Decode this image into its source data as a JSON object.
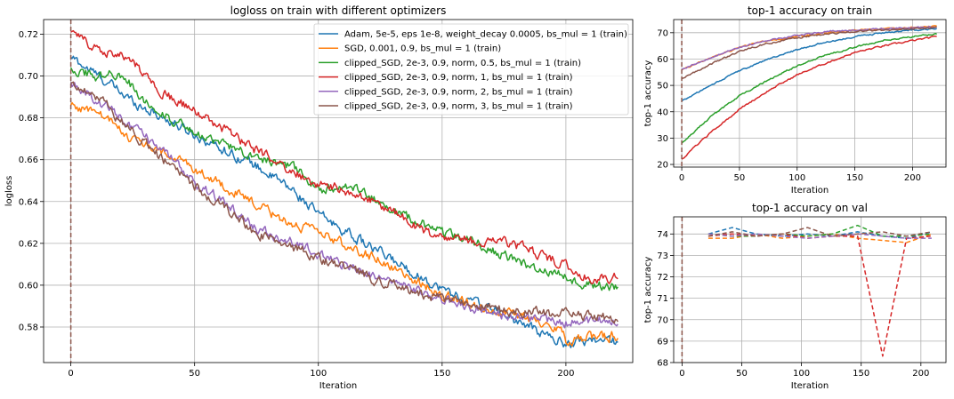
{
  "colors": {
    "adam": "#1f77b4",
    "sgd": "#ff7f0e",
    "clip05": "#2ca02c",
    "clip1": "#d62728",
    "clip2": "#9467bd",
    "clip3": "#8c564b",
    "grid": "#b0b0b0",
    "vline": "#8c564b"
  },
  "chart_data": [
    {
      "id": "loss",
      "type": "line",
      "title": "logloss on train with different optimizers",
      "xlabel": "Iteration",
      "ylabel": "logloss",
      "xlim": [
        -11,
        227
      ],
      "ylim": [
        0.563,
        0.727
      ],
      "xticks": [
        0,
        50,
        100,
        150,
        200
      ],
      "yticks": [
        0.58,
        0.6,
        0.62,
        0.64,
        0.66,
        0.68,
        0.7,
        0.72
      ],
      "ytick_labels": [
        "0.58",
        "0.60",
        "0.62",
        "0.64",
        "0.66",
        "0.68",
        "0.70",
        "0.72"
      ],
      "grid": true,
      "legend_position": "top-right",
      "vline_x": 0,
      "noise": [
        0.002,
        0.5
      ],
      "series": [
        {
          "name": "Adam, 5e-5, eps 1e-8, weight_decay 0.0005, bs_mul = 1 (train)",
          "color_key": "adam",
          "x": [
            0,
            10,
            25,
            50,
            75,
            90,
            100,
            120,
            150,
            175,
            190,
            200,
            210,
            221
          ],
          "y": [
            0.709,
            0.701,
            0.688,
            0.672,
            0.657,
            0.645,
            0.634,
            0.619,
            0.598,
            0.586,
            0.577,
            0.572,
            0.574,
            0.573
          ]
        },
        {
          "name": "SGD, 0.001, 0.9, bs_mul = 1 (train)",
          "color_key": "sgd",
          "x": [
            0,
            10,
            25,
            50,
            75,
            90,
            100,
            125,
            150,
            175,
            195,
            200,
            210,
            221
          ],
          "y": [
            0.686,
            0.683,
            0.67,
            0.656,
            0.638,
            0.629,
            0.625,
            0.612,
            0.595,
            0.587,
            0.581,
            0.574,
            0.575,
            0.576
          ]
        },
        {
          "name": "clipped_SGD, 2e-3, 0.9, norm, 0.5, bs_mul = 1 (train)",
          "color_key": "clip05",
          "x": [
            0,
            10,
            20,
            30,
            50,
            65,
            90,
            100,
            115,
            135,
            150,
            165,
            180,
            200,
            210,
            221
          ],
          "y": [
            0.704,
            0.7,
            0.701,
            0.688,
            0.672,
            0.666,
            0.656,
            0.646,
            0.646,
            0.633,
            0.625,
            0.62,
            0.611,
            0.604,
            0.6,
            0.599
          ]
        },
        {
          "name": "clipped_SGD, 2e-3, 0.9, norm, 1, bs_mul = 1 (train)",
          "color_key": "clip1",
          "x": [
            0,
            8,
            15,
            25,
            35,
            50,
            65,
            85,
            100,
            110,
            125,
            140,
            150,
            165,
            175,
            195,
            210,
            221
          ],
          "y": [
            0.721,
            0.715,
            0.712,
            0.707,
            0.694,
            0.683,
            0.672,
            0.657,
            0.648,
            0.646,
            0.638,
            0.628,
            0.622,
            0.621,
            0.621,
            0.612,
            0.603,
            0.604
          ]
        },
        {
          "name": "clipped_SGD, 2e-3, 0.9, norm, 2, bs_mul = 1 (train)",
          "color_key": "clip2",
          "x": [
            0,
            10,
            25,
            50,
            75,
            100,
            125,
            150,
            175,
            200,
            210,
            221
          ],
          "y": [
            0.697,
            0.689,
            0.676,
            0.65,
            0.627,
            0.615,
            0.603,
            0.593,
            0.586,
            0.582,
            0.583,
            0.582
          ]
        },
        {
          "name": "clipped_SGD, 2e-3, 0.9, norm, 3, bs_mul = 1 (train)",
          "color_key": "clip3",
          "x": [
            0,
            10,
            25,
            50,
            75,
            100,
            125,
            150,
            175,
            200,
            210,
            221
          ],
          "y": [
            0.697,
            0.691,
            0.673,
            0.647,
            0.625,
            0.613,
            0.602,
            0.593,
            0.588,
            0.586,
            0.585,
            0.584
          ]
        }
      ]
    },
    {
      "id": "acc_train",
      "type": "line",
      "title": "top-1 accuracy on train",
      "xlabel": "Iteration",
      "ylabel": "top-1 accuracy",
      "xlim": [
        -7,
        229
      ],
      "ylim": [
        19,
        75
      ],
      "xticks": [
        0,
        50,
        100,
        150,
        200
      ],
      "yticks": [
        20,
        30,
        40,
        50,
        60,
        70
      ],
      "ytick_labels": [
        "20",
        "30",
        "40",
        "50",
        "60",
        "70"
      ],
      "grid": true,
      "vline_x": 0,
      "noise": [
        0.25,
        1
      ],
      "series": [
        {
          "name": "Adam",
          "color_key": "adam",
          "x": [
            0,
            25,
            50,
            75,
            100,
            125,
            150,
            175,
            200,
            221
          ],
          "y": [
            44,
            50,
            55.5,
            60,
            63.5,
            66.5,
            68.5,
            70,
            71,
            71.5
          ]
        },
        {
          "name": "SGD",
          "color_key": "sgd",
          "x": [
            0,
            25,
            50,
            75,
            100,
            125,
            150,
            175,
            200,
            221
          ],
          "y": [
            56,
            60.5,
            64.5,
            67,
            68.5,
            70,
            71,
            71.5,
            72,
            72.5
          ]
        },
        {
          "name": "clipped_SGD 0.5",
          "color_key": "clip05",
          "x": [
            0,
            25,
            50,
            75,
            100,
            125,
            150,
            175,
            200,
            221
          ],
          "y": [
            28,
            38,
            46,
            52,
            57.5,
            61.5,
            64.5,
            67,
            68.5,
            69.5
          ]
        },
        {
          "name": "clipped_SGD 1",
          "color_key": "clip1",
          "x": [
            0,
            25,
            50,
            75,
            100,
            125,
            150,
            175,
            200,
            221
          ],
          "y": [
            22,
            32,
            41,
            48,
            54,
            58.5,
            62.5,
            65,
            67,
            68.5
          ]
        },
        {
          "name": "clipped_SGD 2",
          "color_key": "clip2",
          "x": [
            0,
            25,
            50,
            75,
            100,
            125,
            150,
            175,
            200,
            221
          ],
          "y": [
            56,
            60.5,
            64.5,
            67,
            69,
            70.5,
            71,
            71.5,
            72,
            72
          ]
        },
        {
          "name": "clipped_SGD 3",
          "color_key": "clip3",
          "x": [
            0,
            25,
            50,
            75,
            100,
            125,
            150,
            175,
            200,
            221
          ],
          "y": [
            52.5,
            58,
            63,
            66,
            68,
            69.5,
            70.5,
            71,
            71.5,
            72
          ]
        }
      ]
    },
    {
      "id": "acc_val",
      "type": "line",
      "title": "top-1 accuracy on val",
      "xlabel": "Iteration",
      "ylabel": "top-1 accuracy",
      "xlim": [
        -7,
        221
      ],
      "ylim": [
        68,
        74.8
      ],
      "xticks": [
        0,
        50,
        100,
        150,
        200
      ],
      "yticks": [
        68,
        69,
        70,
        71,
        72,
        73,
        74
      ],
      "ytick_labels": [
        "68",
        "69",
        "70",
        "71",
        "72",
        "73",
        "74"
      ],
      "grid": true,
      "vline_x": 0,
      "dashed": true,
      "series": [
        {
          "name": "Adam",
          "color_key": "adam",
          "x": [
            22,
            42,
            62,
            84,
            105,
            126,
            147,
            168,
            188,
            209
          ],
          "y": [
            74.0,
            74.3,
            74.0,
            73.9,
            74.0,
            73.9,
            74.1,
            73.9,
            73.8,
            74.1
          ]
        },
        {
          "name": "SGD",
          "color_key": "sgd",
          "x": [
            22,
            42,
            62,
            84,
            105,
            126,
            147,
            168,
            188,
            209
          ],
          "y": [
            73.8,
            73.8,
            74.0,
            73.8,
            73.9,
            74.0,
            73.8,
            73.7,
            73.6,
            74.0
          ]
        },
        {
          "name": "clipped_SGD 0.5",
          "color_key": "clip05",
          "x": [
            22,
            42,
            62,
            84,
            105,
            126,
            147,
            168,
            188,
            209
          ],
          "y": [
            74.0,
            73.9,
            73.9,
            74.0,
            73.9,
            74.0,
            74.4,
            73.9,
            73.9,
            74.0
          ]
        },
        {
          "name": "clipped_SGD 1",
          "color_key": "clip1",
          "x": [
            22,
            42,
            62,
            84,
            105,
            126,
            147,
            168,
            188,
            209
          ],
          "y": [
            73.9,
            74.0,
            73.9,
            74.0,
            73.8,
            73.9,
            73.9,
            68.3,
            73.8,
            73.9
          ]
        },
        {
          "name": "clipped_SGD 2",
          "color_key": "clip2",
          "x": [
            22,
            42,
            62,
            84,
            105,
            126,
            147,
            168,
            188,
            209
          ],
          "y": [
            74.0,
            73.9,
            74.0,
            73.9,
            73.8,
            73.9,
            74.0,
            73.9,
            73.8,
            73.8
          ]
        },
        {
          "name": "clipped_SGD 3",
          "color_key": "clip3",
          "x": [
            22,
            42,
            62,
            84,
            105,
            126,
            147,
            168,
            188,
            209
          ],
          "y": [
            73.9,
            74.1,
            73.9,
            74.0,
            74.3,
            73.9,
            74.0,
            74.1,
            73.9,
            74.1
          ]
        }
      ]
    }
  ]
}
